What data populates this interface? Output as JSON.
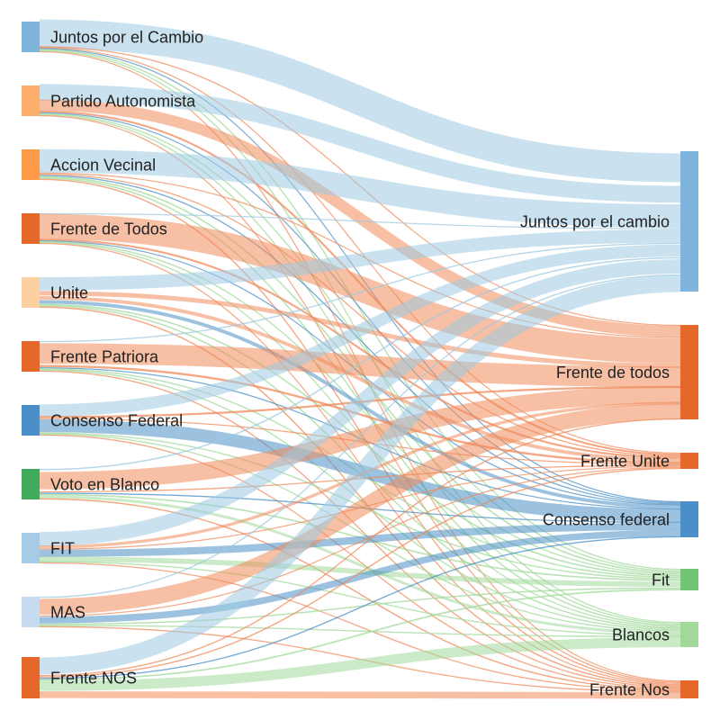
{
  "chart_data": {
    "type": "sankey",
    "sources": [
      {
        "label": "Juntos por el Cambio",
        "color": "#7fb5dc"
      },
      {
        "label": "Partido Autonomista",
        "color": "#fdae6b"
      },
      {
        "label": "Accion Vecinal",
        "color": "#fd9b46"
      },
      {
        "label": "Frente de Todos",
        "color": "#e6672a"
      },
      {
        "label": "Unite",
        "color": "#fdd0a2"
      },
      {
        "label": "Frente Patriora",
        "color": "#e6672a"
      },
      {
        "label": "Consenso Federal",
        "color": "#4a8fc7"
      },
      {
        "label": "Voto en Blanco",
        "color": "#41ab5d"
      },
      {
        "label": "FIT",
        "color": "#a6cbe6"
      },
      {
        "label": "MAS",
        "color": "#c6dbef"
      },
      {
        "label": "Frente NOS",
        "color": "#e6672a"
      }
    ],
    "targets": [
      {
        "label": "Juntos por el cambio",
        "color": "#7fb5dc"
      },
      {
        "label": "Frente de todos",
        "color": "#e6672a"
      },
      {
        "label": "Frente Unite",
        "color": "#e6672a"
      },
      {
        "label": "Consenso federal",
        "color": "#4a8fc7"
      },
      {
        "label": "Fit",
        "color": "#74c476"
      },
      {
        "label": "Blancos",
        "color": "#a1d99b"
      },
      {
        "label": "Frente Nos",
        "color": "#e6672a"
      }
    ],
    "link_colors": {
      "Juntos por el cambio": "#9ecae1",
      "Frente de todos": "#f08a5a",
      "Frente Unite": "#f08a5a",
      "Consenso federal": "#4a8fc7",
      "Fit": "#a1d99b",
      "Blancos": "#a1d99b",
      "Frente Nos": "#f08a5a"
    },
    "flows": [
      [
        25,
        1,
        1,
        1,
        1,
        1,
        1
      ],
      [
        15,
        12,
        2,
        1,
        1,
        1,
        1
      ],
      [
        18,
        1,
        1,
        1,
        1,
        1,
        1
      ],
      [
        1,
        28,
        2,
        1,
        1,
        1,
        1
      ],
      [
        10,
        4,
        3,
        3,
        1,
        1,
        1
      ],
      [
        1,
        20,
        2,
        1,
        1,
        1,
        1
      ],
      [
        10,
        2,
        1,
        12,
        1,
        1,
        1
      ],
      [
        1,
        15,
        1,
        1,
        1,
        2,
        1
      ],
      [
        12,
        3,
        1,
        7,
        4,
        1,
        1
      ],
      [
        1,
        15,
        1,
        6,
        1,
        1,
        1
      ],
      [
        12,
        1,
        1,
        1,
        1,
        7,
        5
      ]
    ]
  }
}
